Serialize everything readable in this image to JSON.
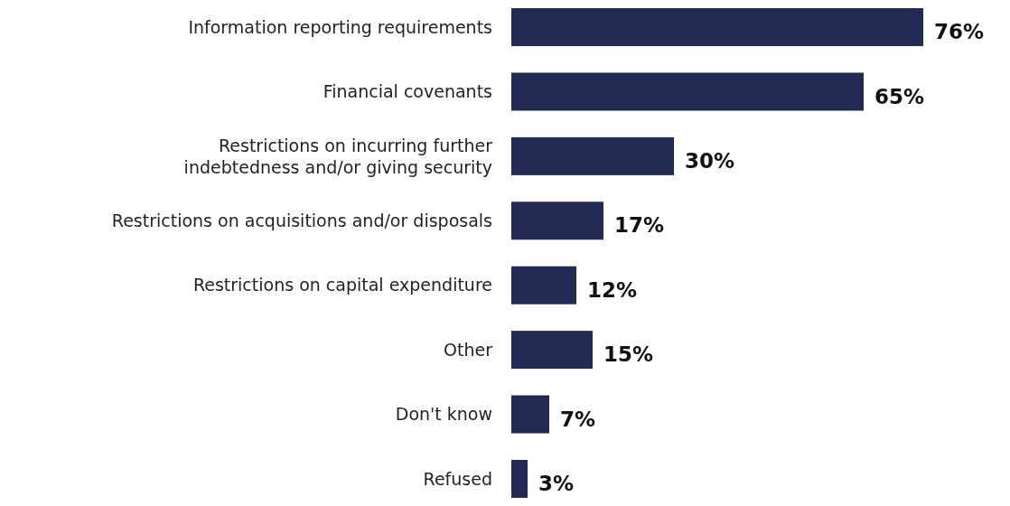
{
  "chart_data": {
    "type": "bar",
    "orientation": "horizontal",
    "categories": [
      "Information reporting requirements",
      "Financial covenants",
      "Restrictions on incurring further indebtedness and/or giving security",
      "Restrictions on acquisitions and/or disposals",
      "Restrictions on capital expenditure",
      "Other",
      "Don't know",
      "Refused"
    ],
    "values": [
      76,
      65,
      30,
      17,
      12,
      15,
      7,
      3
    ],
    "value_labels": [
      "76%",
      "65%",
      "30%",
      "17%",
      "12%",
      "15%",
      "7%",
      "3%"
    ],
    "color": "#222a54"
  }
}
